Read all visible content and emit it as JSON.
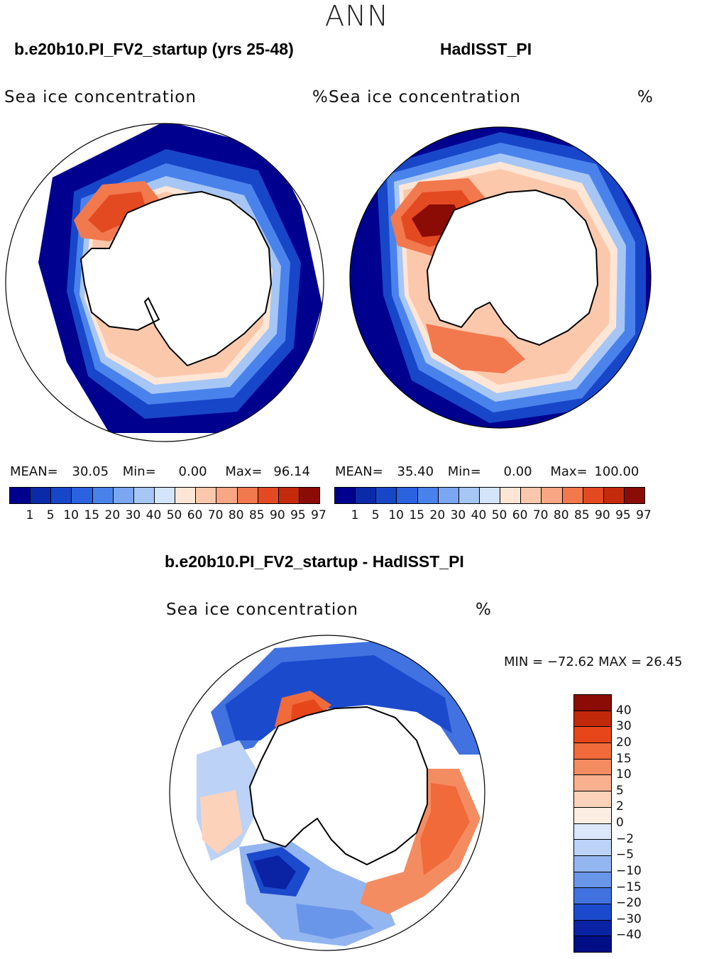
{
  "season": "ANN",
  "panels": {
    "left": {
      "case_title": "b.e20b10.PI_FV2_startup (yrs 25-48)",
      "field_label": "Sea ice concentration",
      "units": "%",
      "mean_label": "MEAN=",
      "mean_value": "30.05",
      "min_label": "Min=",
      "min_value": "0.00",
      "max_label": "Max=",
      "max_value": "96.14"
    },
    "right": {
      "case_title": "HadISST_PI",
      "field_label": "Sea ice concentration",
      "units": "%",
      "mean_label": "MEAN=",
      "mean_value": "35.40",
      "min_label": "Min=",
      "min_value": "0.00",
      "max_label": "Max=",
      "max_value": "100.00"
    },
    "diff": {
      "title": "b.e20b10.PI_FV2_startup - HadISST_PI",
      "field_label": "Sea ice concentration",
      "units": "%",
      "minmax_text": "MIN = −72.62 MAX =   26.45"
    }
  },
  "colorbar_levels": [
    "1",
    "5",
    "10",
    "15",
    "20",
    "30",
    "40",
    "50",
    "60",
    "70",
    "80",
    "85",
    "90",
    "95",
    "97"
  ],
  "colorbar_colors": [
    "#00008f",
    "#0a2aa8",
    "#1846c8",
    "#2a62e0",
    "#4a82ec",
    "#7aa6f2",
    "#a6c6f6",
    "#d4e4fa",
    "#fde6d6",
    "#fcc8ac",
    "#f8a684",
    "#f2784e",
    "#e44a22",
    "#c42a0c",
    "#8a0c04"
  ],
  "diff_levels": [
    "40",
    "30",
    "20",
    "15",
    "10",
    "5",
    "2",
    "0",
    "−2",
    "−5",
    "−10",
    "−15",
    "−20",
    "−30",
    "−40"
  ],
  "diff_colors": [
    "#8a0c04",
    "#c02a0a",
    "#e6461a",
    "#f06a3a",
    "#f48c62",
    "#f8b08e",
    "#fcd2ba",
    "#fdeee4",
    "#dce8fa",
    "#bcd2f6",
    "#94b6f0",
    "#6a96ea",
    "#4272e0",
    "#1c4acc",
    "#0a22a4",
    "#000e86"
  ],
  "chart_data": {
    "type": "heatmap",
    "title": "ANN",
    "maps": [
      {
        "name": "b.e20b10.PI_FV2_startup (yrs 25-48)",
        "field": "Sea ice concentration",
        "units": "%",
        "mean": 30.05,
        "min": 0.0,
        "max": 96.14
      },
      {
        "name": "HadISST_PI",
        "field": "Sea ice concentration",
        "units": "%",
        "mean": 35.4,
        "min": 0.0,
        "max": 100.0
      },
      {
        "name": "b.e20b10.PI_FV2_startup - HadISST_PI",
        "field": "Sea ice concentration",
        "units": "%",
        "min": -72.62,
        "max": 26.45
      }
    ],
    "contour_levels": [
      1,
      5,
      10,
      15,
      20,
      30,
      40,
      50,
      60,
      70,
      80,
      85,
      90,
      95,
      97
    ],
    "diff_contour_levels": [
      -40,
      -30,
      -20,
      -15,
      -10,
      -5,
      -2,
      0,
      2,
      5,
      10,
      15,
      20,
      30,
      40
    ]
  }
}
